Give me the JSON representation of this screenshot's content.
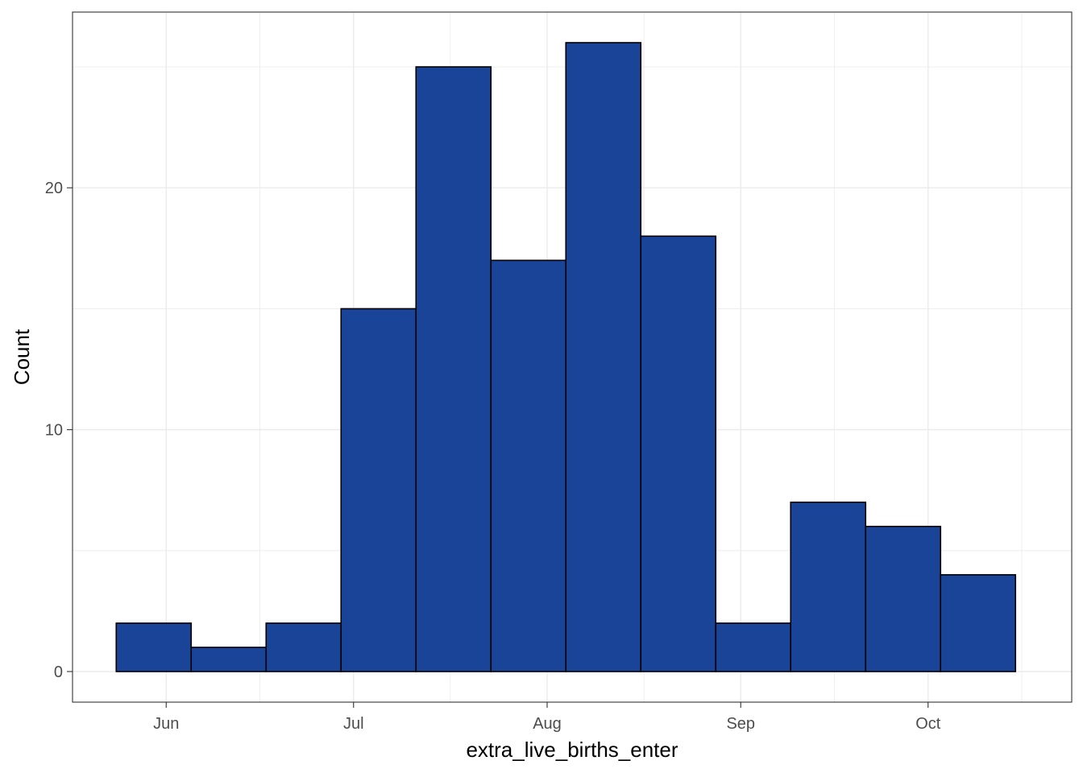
{
  "chart_data": {
    "type": "bar",
    "subtype": "histogram",
    "title": "",
    "xlabel": "extra_live_births_enter",
    "ylabel": "Count",
    "x_axis_type": "date",
    "x_ticks": [
      {
        "label": "Jun",
        "date": "2020-06-01"
      },
      {
        "label": "Jul",
        "date": "2020-07-01"
      },
      {
        "label": "Aug",
        "date": "2020-08-01"
      },
      {
        "label": "Sep",
        "date": "2020-09-01"
      },
      {
        "label": "Oct",
        "date": "2020-10-01"
      }
    ],
    "y_ticks": [
      0,
      10,
      20
    ],
    "ylim": [
      0,
      26
    ],
    "xlim": [
      "2020-05-17",
      "2020-10-24"
    ],
    "bins": [
      {
        "start": "2020-05-24",
        "end": "2020-06-05",
        "count": 2
      },
      {
        "start": "2020-06-05",
        "end": "2020-06-17",
        "count": 1
      },
      {
        "start": "2020-06-17",
        "end": "2020-06-29",
        "count": 2
      },
      {
        "start": "2020-06-29",
        "end": "2020-07-11",
        "count": 15
      },
      {
        "start": "2020-07-11",
        "end": "2020-07-23",
        "count": 25
      },
      {
        "start": "2020-07-23",
        "end": "2020-08-04",
        "count": 17
      },
      {
        "start": "2020-08-04",
        "end": "2020-08-16",
        "count": 26
      },
      {
        "start": "2020-08-16",
        "end": "2020-08-28",
        "count": 18
      },
      {
        "start": "2020-08-28",
        "end": "2020-09-09",
        "count": 2
      },
      {
        "start": "2020-09-09",
        "end": "2020-09-21",
        "count": 7
      },
      {
        "start": "2020-09-21",
        "end": "2020-10-03",
        "count": 6
      },
      {
        "start": "2020-10-03",
        "end": "2020-10-15",
        "count": 4
      }
    ],
    "bar_fill": "#1a4498",
    "bar_stroke": "#000000",
    "grid": true,
    "grid_color": "#ebebeb",
    "panel_border_color": "#333333",
    "legend": "none"
  }
}
